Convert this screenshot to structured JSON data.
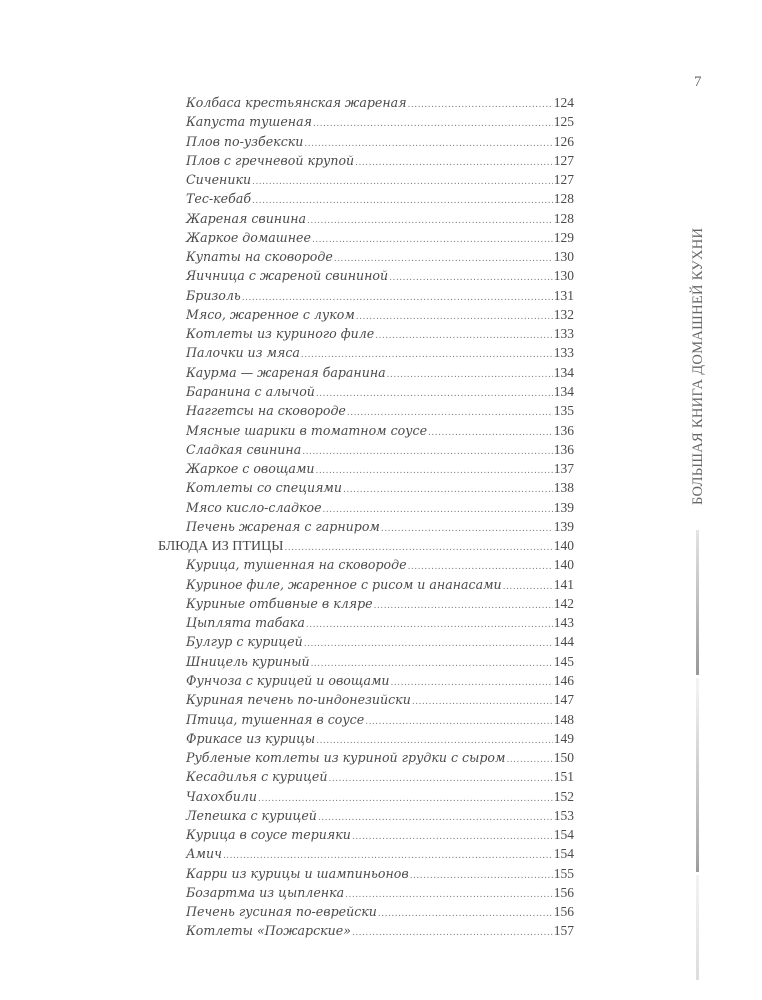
{
  "page_number": "7",
  "side_title": "БОЛЬШАЯ КНИГА ДОМАШНЕЙ КУХНИ",
  "toc": [
    {
      "title": "Колбаса крестьянская жареная",
      "page": "124",
      "level": "sub"
    },
    {
      "title": "Капуста тушеная",
      "page": "125",
      "level": "sub"
    },
    {
      "title": "Плов по-узбекски",
      "page": "126",
      "level": "sub"
    },
    {
      "title": "Плов с гречневой крупой",
      "page": "127",
      "level": "sub"
    },
    {
      "title": "Сиченики",
      "page": "127",
      "level": "sub"
    },
    {
      "title": "Тес-кебаб",
      "page": "128",
      "level": "sub"
    },
    {
      "title": "Жареная свинина",
      "page": "128",
      "level": "sub"
    },
    {
      "title": "Жаркое домашнее",
      "page": "129",
      "level": "sub"
    },
    {
      "title": "Купаты на сковороде",
      "page": "130",
      "level": "sub"
    },
    {
      "title": "Яичница с жареной свининой",
      "page": "130",
      "level": "sub"
    },
    {
      "title": "Бризоль",
      "page": "131",
      "level": "sub"
    },
    {
      "title": "Мясо, жаренное с луком",
      "page": "132",
      "level": "sub"
    },
    {
      "title": "Котлеты из куриного филе",
      "page": "133",
      "level": "sub"
    },
    {
      "title": "Палочки из мяса",
      "page": "133",
      "level": "sub"
    },
    {
      "title": "Каурма — жареная баранина",
      "page": "134",
      "level": "sub"
    },
    {
      "title": "Баранина с алычой",
      "page": "134",
      "level": "sub"
    },
    {
      "title": "Наггетсы на сковороде",
      "page": "135",
      "level": "sub"
    },
    {
      "title": "Мясные шарики в томатном соусе",
      "page": "136",
      "level": "sub"
    },
    {
      "title": "Сладкая свинина",
      "page": "136",
      "level": "sub"
    },
    {
      "title": "Жаркое с овощами",
      "page": "137",
      "level": "sub"
    },
    {
      "title": "Котлеты со специями",
      "page": "138",
      "level": "sub"
    },
    {
      "title": "Мясо кисло-сладкое",
      "page": "139",
      "level": "sub"
    },
    {
      "title": "Печень жареная с гарниром",
      "page": "139",
      "level": "sub"
    },
    {
      "title": "БЛЮДА ИЗ ПТИЦЫ",
      "page": "140",
      "level": "sec"
    },
    {
      "title": "Курица, тушенная на сковороде",
      "page": "140",
      "level": "sub"
    },
    {
      "title": "Куриное филе, жаренное с рисом и ананасами",
      "page": "141",
      "level": "sub"
    },
    {
      "title": "Куриные отбивные в кляре",
      "page": "142",
      "level": "sub"
    },
    {
      "title": "Цыплята табака",
      "page": "143",
      "level": "sub"
    },
    {
      "title": "Булгур с курицей",
      "page": "144",
      "level": "sub"
    },
    {
      "title": "Шницель куриный",
      "page": "145",
      "level": "sub"
    },
    {
      "title": "Фунчоза с курицей и овощами",
      "page": "146",
      "level": "sub"
    },
    {
      "title": "Куриная печень по-индонезийски",
      "page": "147",
      "level": "sub"
    },
    {
      "title": "Птица, тушенная в соусе",
      "page": "148",
      "level": "sub"
    },
    {
      "title": "Фрикасе из курицы",
      "page": "149",
      "level": "sub"
    },
    {
      "title": "Рубленые котлеты из куриной грудки с сыром",
      "page": "150",
      "level": "sub"
    },
    {
      "title": "Кесадилья с курицей",
      "page": "151",
      "level": "sub"
    },
    {
      "title": "Чахохбили",
      "page": "152",
      "level": "sub"
    },
    {
      "title": "Лепешка с курицей",
      "page": "153",
      "level": "sub"
    },
    {
      "title": "Курица в соусе терияки",
      "page": "154",
      "level": "sub"
    },
    {
      "title": "Амич",
      "page": "154",
      "level": "sub"
    },
    {
      "title": "Карри из курицы и шампиньонов",
      "page": "155",
      "level": "sub"
    },
    {
      "title": "Бозартма из цыпленка",
      "page": "156",
      "level": "sub"
    },
    {
      "title": "Печень гусиная по-еврейски",
      "page": "156",
      "level": "sub"
    },
    {
      "title": "Котлеты «Пожарские»",
      "page": "157",
      "level": "sub"
    }
  ]
}
